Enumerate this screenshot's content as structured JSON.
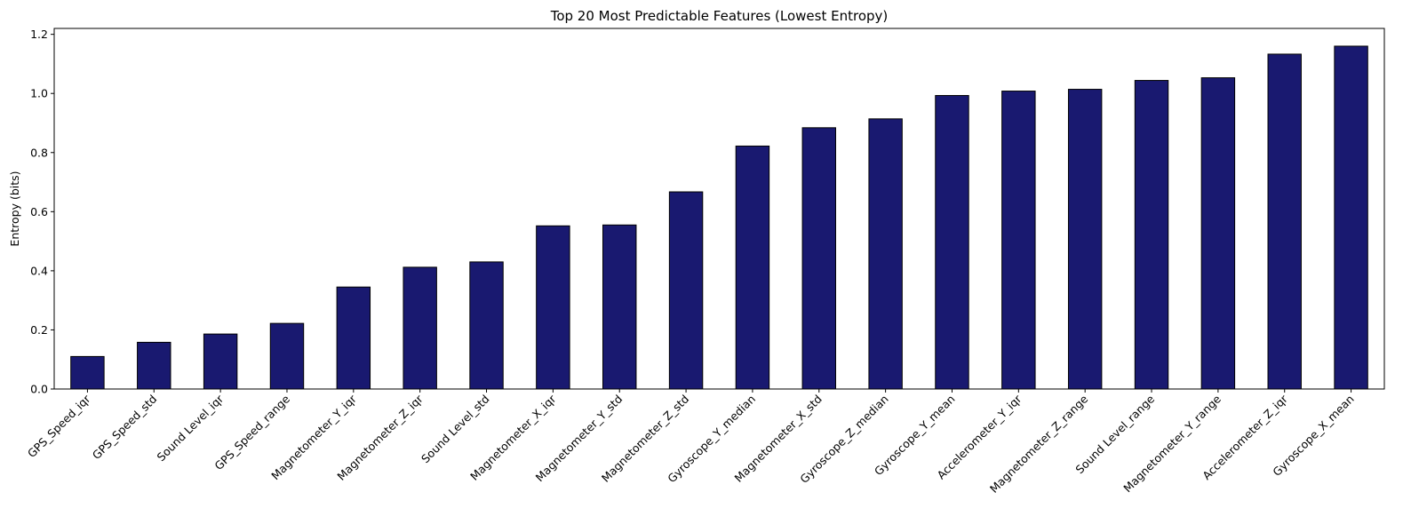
{
  "chart_data": {
    "type": "bar",
    "title": "Top 20 Most Predictable Features (Lowest Entropy)",
    "xlabel": "",
    "ylabel": "Entropy (bits)",
    "ylim": [
      0,
      1.22
    ],
    "yticks": [
      0.0,
      0.2,
      0.4,
      0.6,
      0.8,
      1.0,
      1.2
    ],
    "ytick_labels": [
      "0.0",
      "0.2",
      "0.4",
      "0.6",
      "0.8",
      "1.0",
      "1.2"
    ],
    "grid": false,
    "bar_color": "#191970",
    "edge_color": "#000000",
    "categories": [
      "GPS_Speed_iqr",
      "GPS_Speed_std",
      "Sound Level_iqr",
      "GPS_Speed_range",
      "Magnetometer_Y_iqr",
      "Magnetometer_Z_iqr",
      "Sound Level_std",
      "Magnetometer_X_iqr",
      "Magnetometer_Y_std",
      "Magnetometer_Z_std",
      "Gyroscope_Y_median",
      "Magnetometer_X_std",
      "Gyroscope_Z_median",
      "Gyroscope_Y_mean",
      "Accelerometer_Y_iqr",
      "Magnetometer_Z_range",
      "Sound Level_range",
      "Magnetometer_Y_range",
      "Accelerometer_Z_iqr",
      "Gyroscope_X_mean"
    ],
    "values": [
      0.11,
      0.158,
      0.186,
      0.222,
      0.345,
      0.412,
      0.43,
      0.552,
      0.555,
      0.667,
      0.822,
      0.884,
      0.914,
      0.993,
      1.008,
      1.014,
      1.044,
      1.053,
      1.133,
      1.16
    ]
  }
}
